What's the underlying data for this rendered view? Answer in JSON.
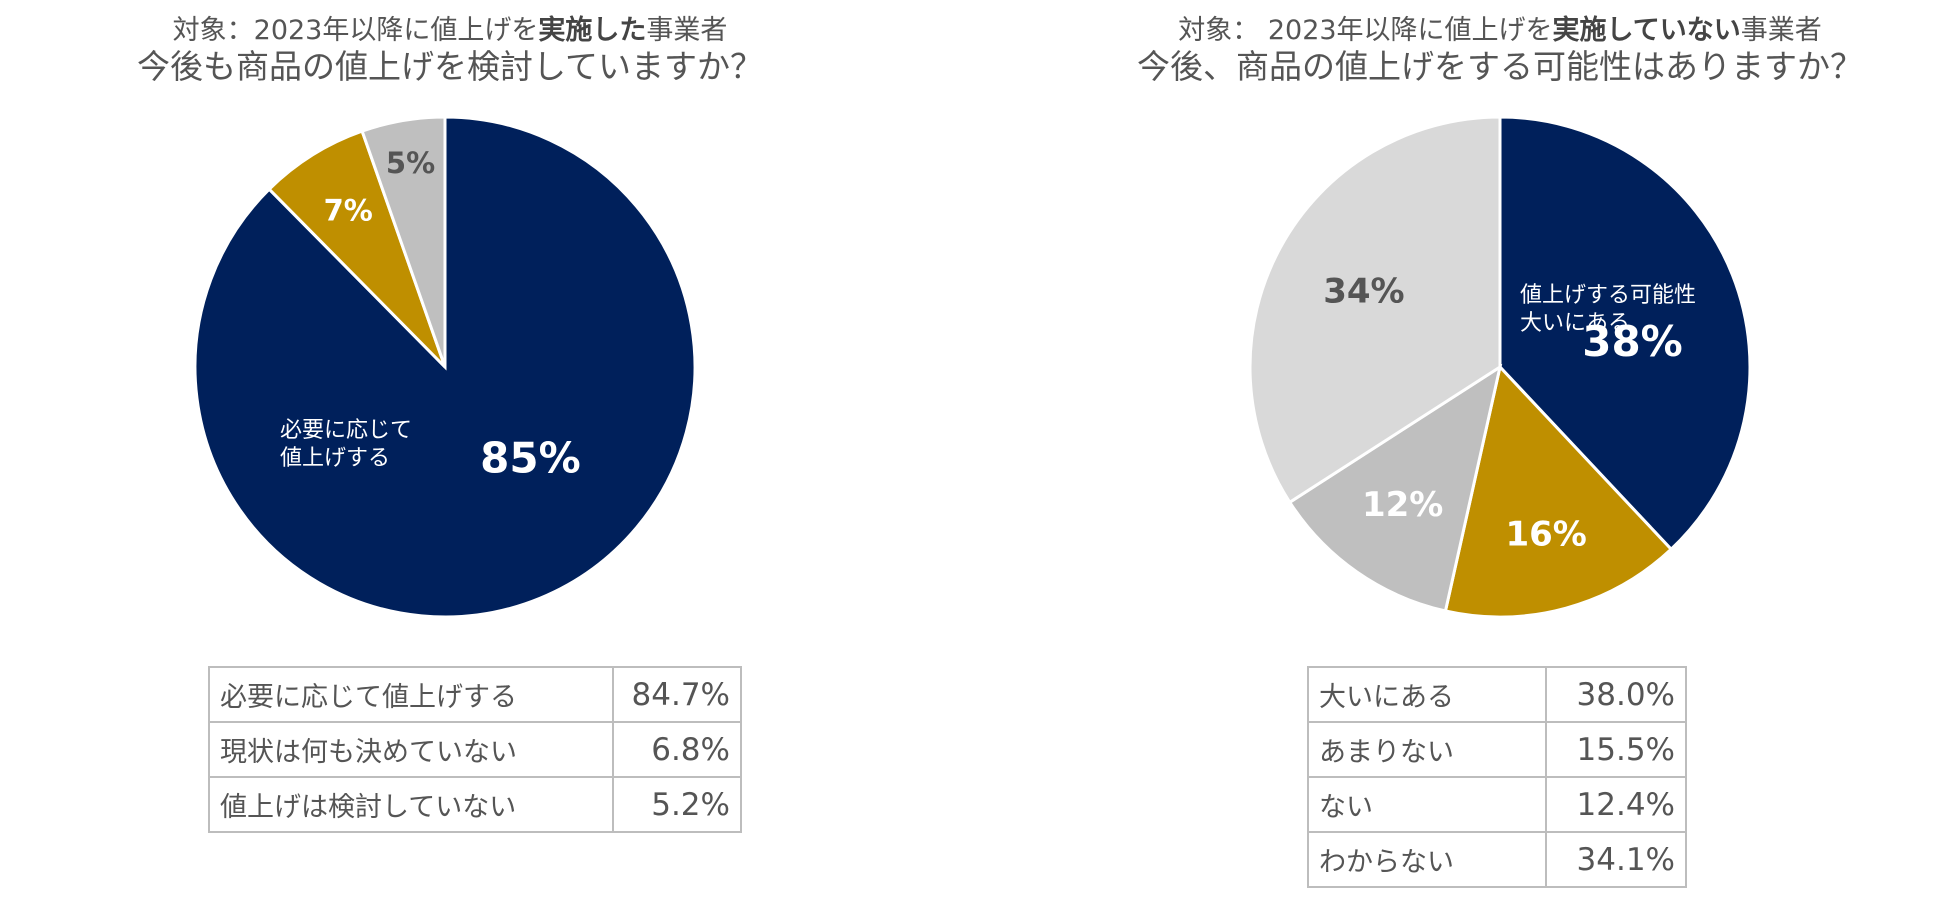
{
  "chart_data": [
    {
      "type": "pie",
      "title_prefix": "対象：2023年以降に値上げを",
      "title_bold": "実施した",
      "title_suffix": "事業者",
      "subtitle": "今後も商品の値上げを検討していますか？",
      "slices": [
        {
          "label": "必要に応じて値上げする",
          "value": 84.7,
          "display": "85%",
          "color": "#00205b"
        },
        {
          "label": "現状は何も決めていない",
          "value": 6.8,
          "display": "7%",
          "color": "#bf8f00"
        },
        {
          "label": "値上げは検討していない",
          "value": 5.2,
          "display": "5%",
          "color": "#bfbfbf"
        }
      ],
      "inner_label": [
        "必要に応じて",
        "値上げする"
      ],
      "table": [
        {
          "label": "必要に応じて値上げする",
          "value": "84.7%"
        },
        {
          "label": "現状は何も決めていない",
          "value": "6.8%"
        },
        {
          "label": "値上げは検討していない",
          "value": "5.2%"
        }
      ]
    },
    {
      "type": "pie",
      "title_prefix": "対象： 2023年以降に値上げを",
      "title_bold": "実施していない",
      "title_suffix": "事業者",
      "subtitle": "今後、商品の値上げをする可能性はありますか？",
      "slices": [
        {
          "label": "大いにある",
          "value": 38.0,
          "display": "38%",
          "color": "#00205b"
        },
        {
          "label": "あまりない",
          "value": 15.5,
          "display": "16%",
          "color": "#bf8f00"
        },
        {
          "label": "ない",
          "value": 12.4,
          "display": "12%",
          "color": "#bfbfbf"
        },
        {
          "label": "わからない",
          "value": 34.1,
          "display": "34%",
          "color": "#d9d9d9"
        }
      ],
      "inner_label": [
        "値上げする可能性",
        "大いにある"
      ],
      "table": [
        {
          "label": "大いにある",
          "value": "38.0%"
        },
        {
          "label": "あまりない",
          "value": "15.5%"
        },
        {
          "label": "ない",
          "value": "12.4%"
        },
        {
          "label": "わからない",
          "value": "34.1%"
        }
      ]
    }
  ]
}
